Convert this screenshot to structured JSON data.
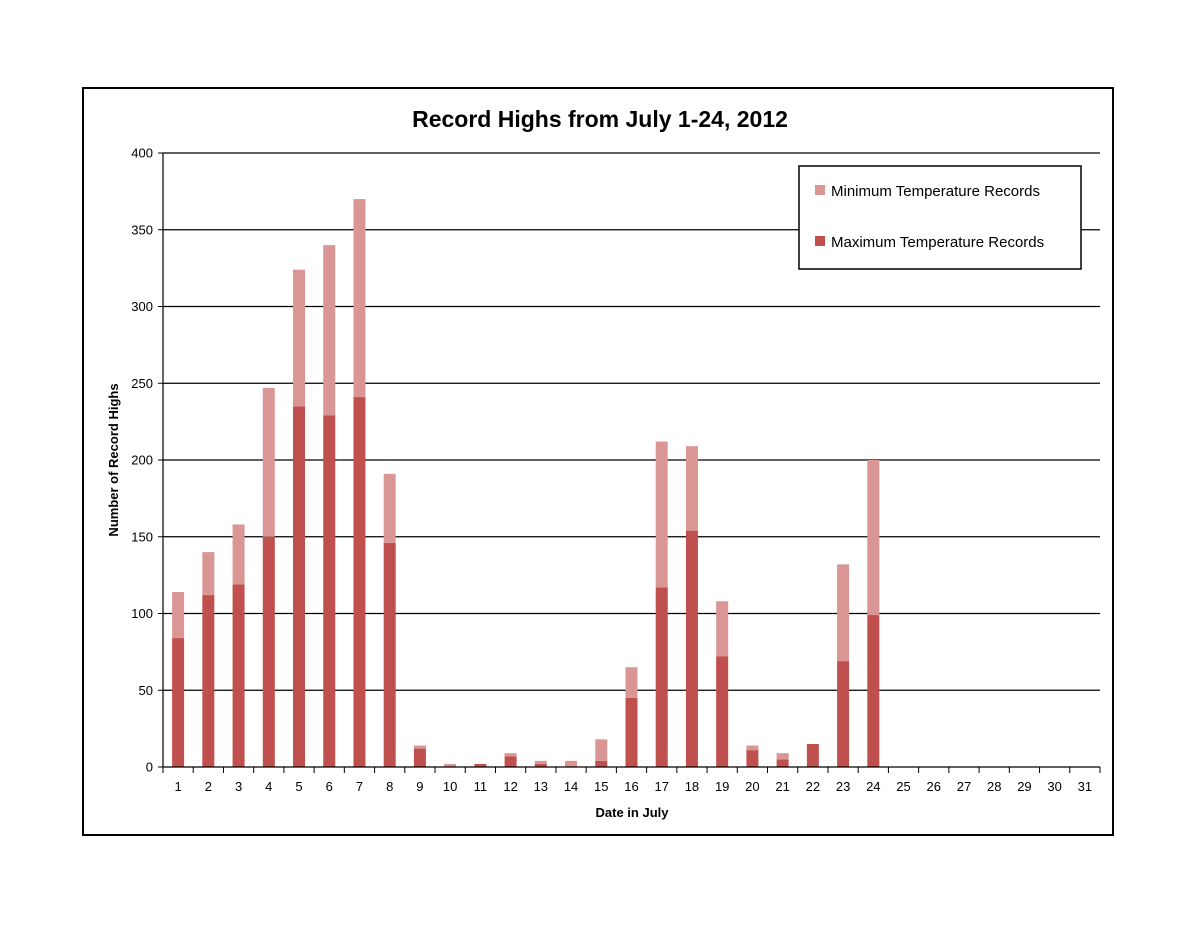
{
  "chart_data": {
    "type": "bar",
    "stacked": true,
    "title": "Record Highs from July 1-24, 2012",
    "xlabel": "Date in July",
    "ylabel": "Number of Record Highs",
    "ylim": [
      0,
      400
    ],
    "yticks": [
      0,
      50,
      100,
      150,
      200,
      250,
      300,
      350,
      400
    ],
    "grid": true,
    "legend_position": "top-right",
    "categories": [
      "1",
      "2",
      "3",
      "4",
      "5",
      "6",
      "7",
      "8",
      "9",
      "10",
      "11",
      "12",
      "13",
      "14",
      "15",
      "16",
      "17",
      "18",
      "19",
      "20",
      "21",
      "22",
      "23",
      "24",
      "25",
      "26",
      "27",
      "28",
      "29",
      "30",
      "31"
    ],
    "series": [
      {
        "name": "Maximum Temperature Records",
        "color": "#c0504d",
        "values": [
          84,
          112,
          119,
          150,
          235,
          229,
          241,
          146,
          12,
          0,
          2,
          7,
          2,
          0,
          4,
          45,
          117,
          154,
          72,
          11,
          5,
          15,
          69,
          99,
          0,
          0,
          0,
          0,
          0,
          0,
          0
        ]
      },
      {
        "name": "Minimum Temperature Records",
        "color": "#d99694",
        "values": [
          30,
          28,
          39,
          97,
          89,
          111,
          129,
          45,
          2,
          2,
          0,
          2,
          2,
          4,
          14,
          20,
          95,
          55,
          36,
          3,
          4,
          0,
          63,
          101,
          0,
          0,
          0,
          0,
          0,
          0,
          0
        ]
      }
    ],
    "legend_order": [
      "Minimum Temperature Records",
      "Maximum Temperature Records"
    ]
  }
}
